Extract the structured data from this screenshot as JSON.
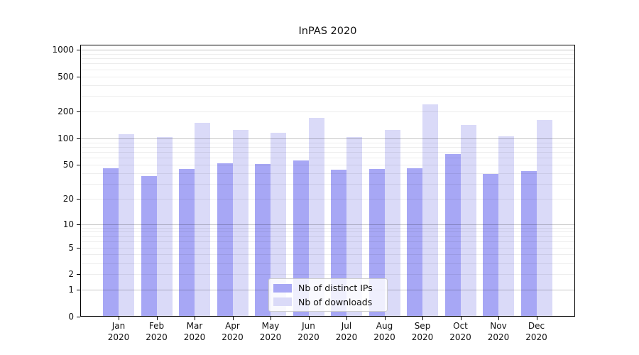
{
  "title": "InPAS 2020",
  "chart_data": {
    "type": "bar",
    "title": "InPAS 2020",
    "categories": [
      "Jan",
      "Feb",
      "Mar",
      "Apr",
      "May",
      "Jun",
      "Jul",
      "Aug",
      "Sep",
      "Oct",
      "Nov",
      "Dec"
    ],
    "year_label": "2020",
    "series": [
      {
        "name": "Nb of distinct IPs",
        "color": "#a7a7f5",
        "values": [
          46,
          37,
          45,
          52,
          51,
          56,
          44,
          45,
          46,
          66,
          39,
          42
        ]
      },
      {
        "name": "Nb of downloads",
        "color": "#dadaf8",
        "values": [
          111,
          104,
          151,
          124,
          115,
          172,
          103,
          124,
          242,
          143,
          106,
          162
        ]
      }
    ],
    "y_scale": "log10(v+1)",
    "y_ticks": [
      0,
      1,
      2,
      5,
      10,
      20,
      50,
      100,
      200,
      500,
      1000
    ],
    "y_major_gridlines": [
      1,
      10,
      100,
      1000
    ],
    "y_minor_gridline_decades": [
      1,
      10,
      100
    ],
    "ylim": [
      0,
      1139
    ],
    "grid": true,
    "legend_position": "lower-center"
  },
  "legend": {
    "items": [
      "Nb of distinct IPs",
      "Nb of downloads"
    ]
  },
  "colors": {
    "background": "#ffffff",
    "plot_border": "#000000",
    "ips_bar": "#a7a7f5",
    "downloads_bar": "#dadaf8",
    "major_gridline": "#c6c6c6",
    "minor_gridline": "#ededed",
    "legend_border": "#cccccc",
    "text": "#111111"
  }
}
